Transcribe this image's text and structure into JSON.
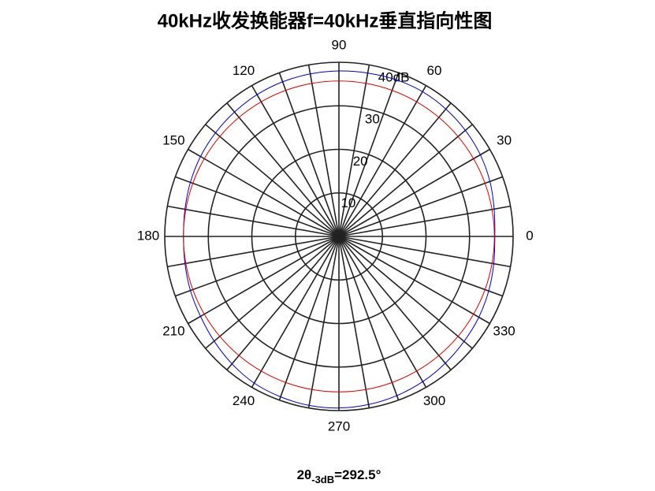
{
  "chart_data": {
    "type": "polar",
    "title": "40kHz收发换能器f=40kHz垂直指向性图",
    "annotation": {
      "prefix": "2θ",
      "subscript": "-3dB",
      "suffix": "=292.5°"
    },
    "x": [
      0,
      10,
      20,
      30,
      40,
      50,
      60,
      70,
      80,
      90,
      100,
      110,
      120,
      130,
      140,
      150,
      160,
      170,
      180,
      190,
      200,
      210,
      220,
      230,
      240,
      250,
      260,
      270,
      280,
      290,
      300,
      310,
      320,
      330,
      340,
      350
    ],
    "series": [
      {
        "color": "#0000cc",
        "values": [
          35.8,
          36.2,
          36.9,
          37.5,
          37.9,
          38.2,
          38.4,
          38.3,
          38.1,
          38.0,
          37.9,
          37.8,
          37.6,
          37.3,
          37.0,
          36.7,
          36.3,
          35.9,
          35.7,
          35.9,
          36.3,
          36.7,
          37.4,
          38.2,
          38.9,
          39.2,
          39.4,
          39.4,
          39.2,
          38.9,
          38.5,
          38.0,
          37.5,
          37.1,
          36.6,
          36.1
        ]
      },
      {
        "color": "#dd0000",
        "values": [
          35.7,
          35.7,
          35.7,
          35.7,
          35.7,
          35.7,
          35.7,
          35.7,
          35.7,
          35.7,
          35.7,
          35.7,
          35.7,
          35.7,
          35.7,
          35.7,
          35.7,
          35.7,
          35.7,
          35.7,
          35.7,
          35.7,
          35.7,
          35.7,
          35.7,
          35.7,
          35.7,
          35.7,
          35.7,
          35.7,
          35.7,
          35.7,
          35.7,
          35.7,
          35.7,
          35.7
        ]
      }
    ],
    "ylim": [
      0,
      40
    ],
    "yticks": [
      10,
      20,
      30,
      {
        "value": 40,
        "label": "40dB"
      }
    ],
    "xticks": [
      0,
      30,
      60,
      90,
      120,
      150,
      180,
      210,
      240,
      270,
      300,
      330
    ],
    "angle_gridlines": [
      0,
      10,
      20,
      30,
      40,
      50,
      60,
      70,
      80,
      90,
      100,
      110,
      120,
      130,
      140,
      150,
      160,
      170,
      180,
      190,
      200,
      210,
      220,
      230,
      240,
      250,
      260,
      270,
      280,
      290,
      300,
      310,
      320,
      330,
      340,
      350
    ],
    "grid": true
  }
}
